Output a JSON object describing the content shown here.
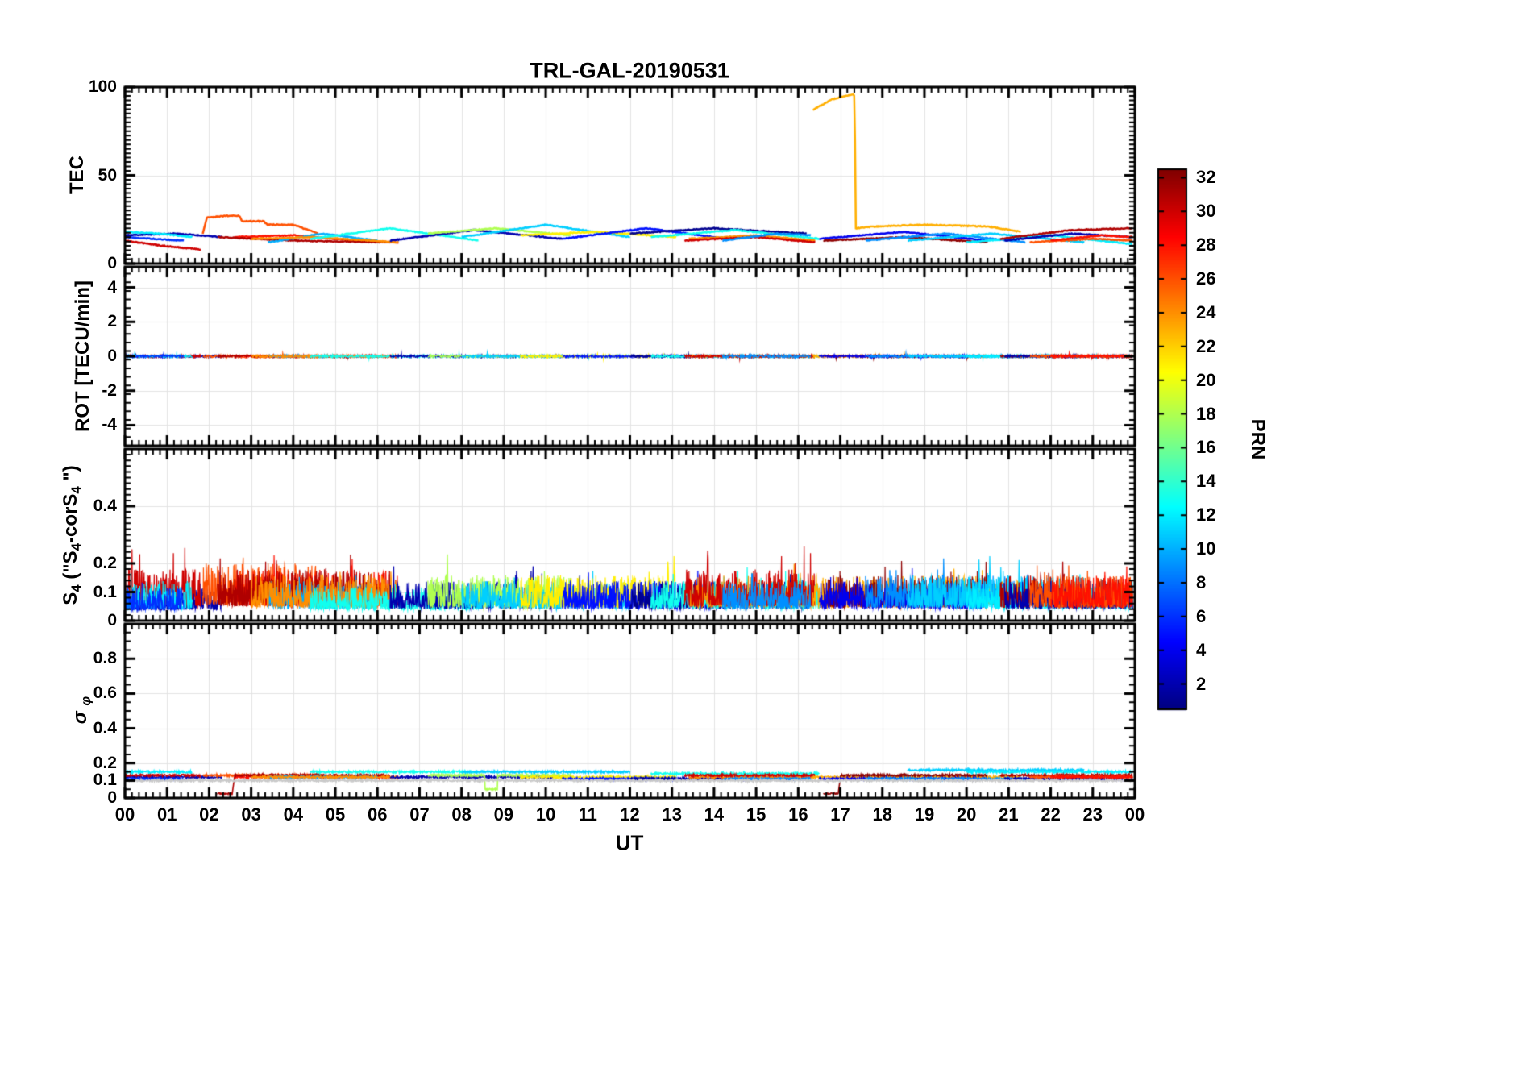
{
  "labels": {
    "title": "TRL-GAL-20190531",
    "xlabel": "UT",
    "colorbar_label": "PRN",
    "ylabels": [
      [
        {
          "t": "TEC"
        }
      ],
      [
        {
          "t": "ROT [TECU/min]"
        }
      ],
      [
        {
          "t": "S"
        },
        {
          "t": "4",
          "sub": true
        },
        {
          "t": " (\"S"
        },
        {
          "t": "4",
          "sub": true
        },
        {
          "t": "-corS"
        },
        {
          "t": "4",
          "sub": true
        },
        {
          "t": " \")"
        }
      ],
      [
        {
          "t": "σ",
          "italic": true
        },
        {
          "t": " "
        },
        {
          "t": "φ",
          "sub": true,
          "italic": true
        }
      ]
    ]
  },
  "chart_data": {
    "type": "line",
    "title": "TRL-GAL-20190531",
    "x": {
      "label": "UT",
      "range_hours": [
        0,
        24
      ],
      "tick_labels": [
        "00",
        "01",
        "02",
        "03",
        "04",
        "05",
        "06",
        "07",
        "08",
        "09",
        "10",
        "11",
        "12",
        "13",
        "14",
        "15",
        "16",
        "17",
        "18",
        "19",
        "20",
        "21",
        "22",
        "23",
        "00"
      ]
    },
    "colorbar": {
      "label": "PRN",
      "colormap": "jet",
      "value_range": [
        1,
        32
      ],
      "ticks": [
        2,
        4,
        6,
        8,
        10,
        12,
        14,
        16,
        18,
        20,
        22,
        24,
        26,
        28,
        30,
        32
      ]
    },
    "panels": [
      {
        "id": "tec",
        "ylabel": "TEC",
        "ylim": [
          0,
          100
        ],
        "yticks": [
          0,
          50,
          100
        ],
        "grid": true
      },
      {
        "id": "rot",
        "ylabel": "ROT [TECU/min]",
        "ylim": [
          -5.2,
          5.2
        ],
        "yticks": [
          -4,
          -2,
          0,
          2,
          4
        ],
        "grid": true
      },
      {
        "id": "s4",
        "ylabel": "S4 (\"S4-corS4\")",
        "ylim": [
          0,
          0.6
        ],
        "yticks": [
          0,
          0.1,
          0.2,
          0.4
        ],
        "grid": true
      },
      {
        "id": "sigma_phi",
        "ylabel": "sigma_phi",
        "ylim": [
          0,
          1
        ],
        "yticks": [
          0,
          0.1,
          0.2,
          0.4,
          0.6,
          0.8
        ],
        "grid": true
      }
    ],
    "series": [
      {
        "prn": 2,
        "tec": [
          [
            0.0,
            16
          ],
          [
            1.2,
            17
          ],
          [
            2.3,
            15
          ]
        ],
        "s4_base": 0.05,
        "sigma": 0.12
      },
      {
        "prn": 30,
        "tec": [
          [
            0.0,
            13
          ],
          [
            0.9,
            10
          ],
          [
            1.8,
            8
          ]
        ],
        "s4_base": 0.08,
        "sigma": 0.13
      },
      {
        "prn": 12,
        "tec": [
          [
            0.0,
            18
          ],
          [
            0.8,
            17
          ],
          [
            1.6,
            15
          ]
        ],
        "s4_base": 0.06,
        "sigma": 0.15
      },
      {
        "prn": 6,
        "tec": [
          [
            0.0,
            15
          ],
          [
            0.7,
            14
          ],
          [
            1.4,
            13
          ]
        ],
        "s4_base": 0.05,
        "sigma": 0.11
      },
      {
        "prn": 26,
        "tec": [
          [
            1.85,
            17
          ],
          [
            1.95,
            26
          ],
          [
            2.4,
            27
          ],
          [
            2.72,
            27
          ],
          [
            2.78,
            24
          ],
          [
            3.3,
            24
          ],
          [
            3.38,
            22
          ],
          [
            4.0,
            22
          ],
          [
            4.6,
            17
          ]
        ],
        "s4_base": 0.09,
        "sigma": 0.13
      },
      {
        "prn": 28,
        "tec": [
          [
            2.6,
            15
          ],
          [
            4.0,
            16
          ],
          [
            5.5,
            13
          ],
          [
            6.5,
            12
          ]
        ],
        "s4_base": 0.08,
        "s4_spikes": [
          [
            5.4,
            0.18
          ],
          [
            5.7,
            0.16
          ]
        ],
        "sigma": 0.12
      },
      {
        "prn": 31,
        "tec": [
          [
            2.2,
            15
          ],
          [
            4.0,
            13
          ],
          [
            6.3,
            12
          ]
        ],
        "s4_base": 0.08,
        "sigma": 0.13,
        "sigma_step": true
      },
      {
        "prn": 10,
        "tec": [
          [
            3.4,
            12
          ],
          [
            4.7,
            17
          ],
          [
            6.0,
            13
          ]
        ],
        "s4_base": 0.06,
        "sigma": 0.12
      },
      {
        "prn": 24,
        "tec": [
          [
            3.0,
            14
          ],
          [
            4.5,
            15
          ],
          [
            6.5,
            12
          ]
        ],
        "s4_base": 0.07,
        "sigma": 0.12
      },
      {
        "prn": 13,
        "tec": [
          [
            4.4,
            14
          ],
          [
            6.3,
            20
          ],
          [
            8.4,
            13
          ]
        ],
        "s4_base": 0.05,
        "sigma": 0.15
      },
      {
        "prn": 2,
        "tec": [
          [
            6.3,
            13
          ],
          [
            8.3,
            19
          ],
          [
            10.4,
            14
          ]
        ],
        "s4_base": 0.06,
        "s4_spikes": [
          [
            9.3,
            0.16
          ],
          [
            9.7,
            0.14
          ]
        ],
        "sigma": 0.12
      },
      {
        "prn": 18,
        "tec": [
          [
            7.2,
            17
          ],
          [
            8.8,
            20
          ],
          [
            10.6,
            16
          ]
        ],
        "s4_base": 0.07,
        "s4_spikes": [
          [
            7.4,
            0.14
          ],
          [
            7.65,
            0.13
          ]
        ],
        "sigma": 0.13,
        "sigma_dip": [
          8.55,
          8.85,
          0.05
        ]
      },
      {
        "prn": 11,
        "tec": [
          [
            8.0,
            15
          ],
          [
            10.0,
            22
          ],
          [
            12.0,
            15
          ]
        ],
        "s4_base": 0.06,
        "sigma": 0.15
      },
      {
        "prn": 21,
        "tec": [
          [
            9.4,
            16
          ],
          [
            11.2,
            18
          ],
          [
            13.1,
            15
          ]
        ],
        "s4_base": 0.07,
        "s4_spikes": [
          [
            12.9,
            0.2
          ],
          [
            13.05,
            0.17
          ]
        ],
        "sigma": 0.12
      },
      {
        "prn": 5,
        "tec": [
          [
            10.4,
            14
          ],
          [
            12.4,
            20
          ],
          [
            14.3,
            14
          ]
        ],
        "s4_base": 0.06,
        "s4_spikes": [
          [
            13.6,
            0.15
          ]
        ],
        "sigma": 0.11
      },
      {
        "prn": 1,
        "tec": [
          [
            12.0,
            17
          ],
          [
            14.0,
            20
          ],
          [
            16.2,
            17
          ]
        ],
        "s4_base": 0.06,
        "sigma": 0.11
      },
      {
        "prn": 13,
        "tec": [
          [
            12.5,
            15
          ],
          [
            14.5,
            19
          ],
          [
            16.5,
            14
          ]
        ],
        "s4_base": 0.06,
        "sigma": 0.14
      },
      {
        "prn": 24,
        "tec": [
          [
            13.4,
            14
          ],
          [
            15.0,
            16
          ],
          [
            16.4,
            13
          ]
        ],
        "s4_base": 0.07,
        "s4_spikes": [
          [
            15.9,
            0.15
          ]
        ],
        "sigma": 0.12
      },
      {
        "prn": 30,
        "tec": [
          [
            13.3,
            13
          ],
          [
            15.0,
            15
          ],
          [
            16.4,
            12
          ]
        ],
        "s4_base": 0.08,
        "s4_spikes": [
          [
            13.85,
            0.22
          ]
        ],
        "sigma": 0.13
      },
      {
        "prn": 9,
        "tec": [
          [
            14.2,
            13
          ],
          [
            15.5,
            17
          ],
          [
            16.3,
            16
          ]
        ],
        "s4_base": 0.06,
        "sigma": 0.11
      },
      {
        "prn": 23,
        "tec": [
          [
            16.35,
            87
          ],
          [
            16.8,
            93
          ],
          [
            17.3,
            96
          ],
          [
            17.34,
            95
          ],
          [
            17.37,
            20
          ],
          [
            17.8,
            21
          ],
          [
            19.0,
            22
          ],
          [
            20.5,
            21
          ],
          [
            21.3,
            18
          ]
        ],
        "s4_base": 0.07,
        "sigma": 0.12
      },
      {
        "prn": 32,
        "tec": [
          [
            16.6,
            13
          ],
          [
            18.5,
            15
          ],
          [
            20.5,
            12
          ]
        ],
        "s4_base": 0.07,
        "sigma": 0.13,
        "sigma_step": true
      },
      {
        "prn": 4,
        "tec": [
          [
            16.5,
            14
          ],
          [
            18.5,
            18
          ],
          [
            20.5,
            13
          ]
        ],
        "s4_base": 0.06,
        "sigma": 0.11
      },
      {
        "prn": 9,
        "tec": [
          [
            17.6,
            13
          ],
          [
            19.5,
            17
          ],
          [
            21.4,
            12
          ]
        ],
        "s4_base": 0.07,
        "s4_spikes": [
          [
            19.45,
            0.17
          ],
          [
            19.8,
            0.15
          ]
        ],
        "sigma": 0.11
      },
      {
        "prn": 11,
        "tec": [
          [
            18.6,
            13
          ],
          [
            20.6,
            17
          ],
          [
            22.8,
            12
          ]
        ],
        "s4_base": 0.07,
        "s4_spikes": [
          [
            20.3,
            0.19
          ],
          [
            20.55,
            0.2
          ],
          [
            20.8,
            0.16
          ]
        ],
        "sigma": 0.16
      },
      {
        "prn": 12,
        "tec": [
          [
            20.0,
            12
          ],
          [
            22.0,
            16
          ],
          [
            23.95,
            11
          ]
        ],
        "s4_base": 0.06,
        "sigma": 0.15
      },
      {
        "prn": 31,
        "tec": [
          [
            20.8,
            14
          ],
          [
            22.5,
            19
          ],
          [
            23.95,
            20
          ]
        ],
        "s4_base": 0.07,
        "s4_spikes": [
          [
            22.3,
            0.15
          ]
        ],
        "sigma": 0.13
      },
      {
        "prn": 2,
        "tec": [
          [
            20.9,
            13
          ],
          [
            22.5,
            17
          ],
          [
            23.95,
            15
          ]
        ],
        "s4_base": 0.06,
        "sigma": 0.11
      },
      {
        "prn": 26,
        "tec": [
          [
            21.5,
            12
          ],
          [
            23.0,
            14
          ],
          [
            23.95,
            13
          ]
        ],
        "s4_base": 0.07,
        "sigma": 0.12
      },
      {
        "prn": 28,
        "tec": [
          [
            22.0,
            13
          ],
          [
            23.2,
            16
          ],
          [
            23.95,
            15
          ]
        ],
        "s4_base": 0.07,
        "s4_spikes": [
          [
            23.3,
            0.14
          ]
        ],
        "sigma": 0.12
      },
      {
        "color": "#c9c9c9",
        "range": [
          0.05,
          23.95
        ],
        "sigma": 0.1
      }
    ]
  }
}
